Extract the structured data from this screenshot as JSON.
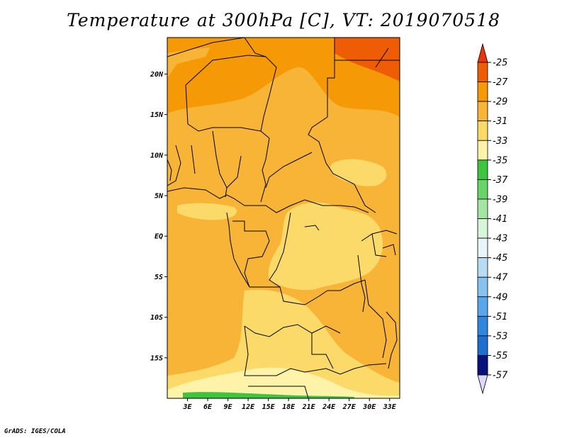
{
  "title": "Temperature at 300hPa [C], VT: 2019070518",
  "credit": "GrADS: IGES/COLA",
  "map": {
    "lon_range": [
      0,
      34.5
    ],
    "lat_range": [
      -20,
      24.5
    ],
    "lon_ticks": [
      {
        "value": 3,
        "label": "3E"
      },
      {
        "value": 6,
        "label": "6E"
      },
      {
        "value": 9,
        "label": "9E"
      },
      {
        "value": 12,
        "label": "12E"
      },
      {
        "value": 15,
        "label": "15E"
      },
      {
        "value": 18,
        "label": "18E"
      },
      {
        "value": 21,
        "label": "21E"
      },
      {
        "value": 24,
        "label": "24E"
      },
      {
        "value": 27,
        "label": "27E"
      },
      {
        "value": 30,
        "label": "30E"
      },
      {
        "value": 33,
        "label": "33E"
      }
    ],
    "lat_ticks": [
      {
        "value": 20,
        "label": "20N"
      },
      {
        "value": 15,
        "label": "15N"
      },
      {
        "value": 10,
        "label": "10N"
      },
      {
        "value": 5,
        "label": "5N"
      },
      {
        "value": 0,
        "label": "EQ"
      },
      {
        "value": -5,
        "label": "5S"
      },
      {
        "value": -10,
        "label": "10S"
      },
      {
        "value": -15,
        "label": "15S"
      }
    ],
    "region_colors": {
      "gt_minus27": "#ee5d05",
      "minus29_to_minus27": "#f59a06",
      "minus31_to_minus29": "#f7b437",
      "minus33_to_minus31": "#fbda6a",
      "minus35_to_minus33": "#fff2a9",
      "minus37_to_minus35": "#3ec43e"
    }
  },
  "colorbar": {
    "levels": [
      {
        "label": "-25",
        "color": "#ee5d05"
      },
      {
        "label": "-27",
        "color": "#f59a06"
      },
      {
        "label": "-29",
        "color": "#f7b437"
      },
      {
        "label": "-31",
        "color": "#fbda6a"
      },
      {
        "label": "-33",
        "color": "#fff2a9"
      },
      {
        "label": "-35",
        "color": "#3ec43e"
      },
      {
        "label": "-37",
        "color": "#69d469"
      },
      {
        "label": "-39",
        "color": "#a3e6a3"
      },
      {
        "label": "-41",
        "color": "#d7f5d7"
      },
      {
        "label": "-43",
        "color": "#eaf4fb"
      },
      {
        "label": "-45",
        "color": "#b9dcf5"
      },
      {
        "label": "-47",
        "color": "#88c2ef"
      },
      {
        "label": "-49",
        "color": "#5aa6ea"
      },
      {
        "label": "-51",
        "color": "#2f87e0"
      },
      {
        "label": "-53",
        "color": "#1f6fd1"
      },
      {
        "label": "-55",
        "color": "#1350b5"
      },
      {
        "label": "-57",
        "color": "#0a137a"
      }
    ],
    "top_triangle_color": "#e8340a",
    "bottom_triangle_color": "#dcd8ff"
  }
}
